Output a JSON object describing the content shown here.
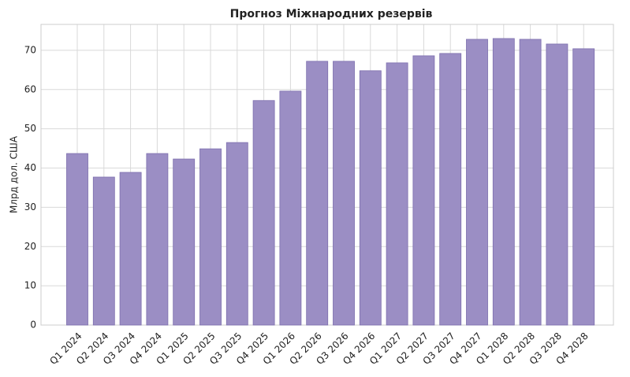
{
  "chart_data": {
    "type": "bar",
    "title": "Прогноз Міжнародних резервів",
    "y_label": "Млрд дол. США",
    "categories": [
      "Q1 2024",
      "Q2 2024",
      "Q3 2024",
      "Q4 2024",
      "Q1 2025",
      "Q2 2025",
      "Q3 2025",
      "Q4 2025",
      "Q1 2026",
      "Q2 2026",
      "Q3 2026",
      "Q4 2026",
      "Q1 2027",
      "Q2 2027",
      "Q3 2027",
      "Q4 2027",
      "Q1 2028",
      "Q2 2028",
      "Q3 2028",
      "Q4 2028"
    ],
    "values": [
      43.7,
      37.7,
      38.9,
      43.7,
      42.3,
      44.9,
      46.5,
      57.2,
      59.6,
      67.2,
      67.2,
      64.8,
      66.8,
      68.6,
      69.2,
      72.8,
      73.0,
      72.8,
      71.6,
      70.4
    ],
    "color": "#9b8ec4",
    "edge_color": "#7d6fae",
    "ylim": [
      0,
      76.6
    ],
    "yticks": [
      0,
      10,
      20,
      30,
      40,
      50,
      60,
      70
    ],
    "grid": true
  }
}
